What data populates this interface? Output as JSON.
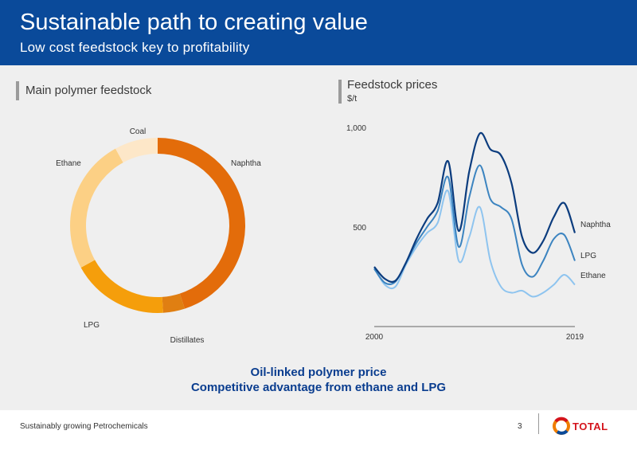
{
  "header": {
    "title": "Sustainable path to creating value",
    "subtitle": "Low cost feedstock key to profitability"
  },
  "left_panel": {
    "label": "Main polymer feedstock"
  },
  "right_panel": {
    "label": "Feedstock prices",
    "unit": "$/t"
  },
  "conclusion": {
    "line1": "Oil-linked polymer price",
    "line2": "Competitive advantage from ethane and LPG"
  },
  "footer": {
    "text": "Sustainably growing Petrochemicals",
    "page": "3",
    "brand": "TOTAL"
  },
  "colors": {
    "header_bg": "#0a4a9a",
    "naphtha_slice": "#e36c0a",
    "distillates_slice": "#e07f12",
    "lpg_slice": "#f59e0b",
    "ethane_slice": "#fcd085",
    "coal_slice": "#fde7c8",
    "naphtha_line": "#0b3c7e",
    "lpg_line": "#3c84c0",
    "ethane_line": "#8ec4ef"
  },
  "chart_data": [
    {
      "type": "pie",
      "title": "Main polymer feedstock",
      "categories": [
        "Naphtha",
        "Distillates",
        "LPG",
        "Ethane",
        "Coal"
      ],
      "values": [
        45,
        4,
        18,
        25,
        8
      ]
    },
    {
      "type": "line",
      "title": "Feedstock prices",
      "ylabel": "$/t",
      "xlim": [
        2000,
        2019
      ],
      "ylim": [
        0,
        1000
      ],
      "ytick_labels": [
        "500",
        "1,000"
      ],
      "yticks": [
        500,
        1000
      ],
      "xtick_labels": [
        "2000",
        "2019"
      ],
      "xticks": [
        2000,
        2019
      ],
      "x": [
        2000,
        2001,
        2002,
        2003,
        2004,
        2005,
        2006,
        2007,
        2008,
        2009,
        2010,
        2011,
        2012,
        2013,
        2014,
        2015,
        2016,
        2017,
        2018,
        2019
      ],
      "series": [
        {
          "name": "Naphtha",
          "values": [
            300,
            240,
            230,
            320,
            440,
            540,
            620,
            830,
            480,
            780,
            970,
            890,
            860,
            720,
            450,
            370,
            430,
            550,
            620,
            470
          ]
        },
        {
          "name": "LPG",
          "values": [
            290,
            220,
            225,
            320,
            420,
            500,
            580,
            750,
            400,
            650,
            810,
            640,
            600,
            540,
            310,
            250,
            330,
            440,
            460,
            330
          ]
        },
        {
          "name": "Ethane",
          "values": [
            295,
            210,
            200,
            310,
            400,
            470,
            520,
            680,
            330,
            450,
            600,
            330,
            200,
            170,
            180,
            150,
            170,
            210,
            260,
            210
          ]
        }
      ]
    }
  ]
}
